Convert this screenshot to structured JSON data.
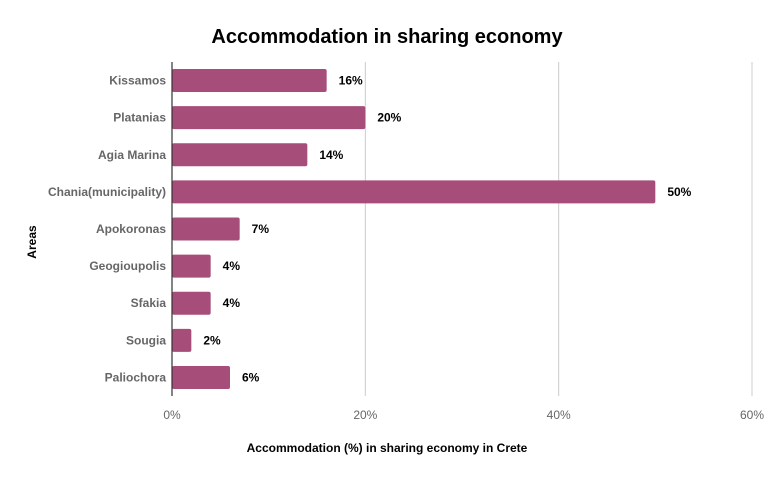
{
  "chart_data": {
    "type": "bar",
    "orientation": "horizontal",
    "title": "Accommodation in sharing economy",
    "xlabel": "Accommodation (%) in sharing economy in Crete",
    "ylabel": "Areas",
    "categories": [
      "Kissamos",
      "Platanias",
      "Agia Marina",
      "Chania(municipality)",
      "Apokoronas",
      "Geogioupolis",
      "Sfakia",
      "Sougia",
      "Paliochora"
    ],
    "values": [
      16,
      20,
      14,
      50,
      7,
      4,
      4,
      2,
      6
    ],
    "data_labels": [
      "16%",
      "20%",
      "14%",
      "50%",
      "7%",
      "4%",
      "4%",
      "2%",
      "6%"
    ],
    "xlim": [
      0,
      60
    ],
    "x_ticks": [
      0,
      20,
      40,
      60
    ],
    "x_tick_labels": [
      "0%",
      "20%",
      "40%",
      "60%"
    ],
    "grid": "vertical",
    "legend": "none",
    "bar_color": "#a64d79"
  }
}
